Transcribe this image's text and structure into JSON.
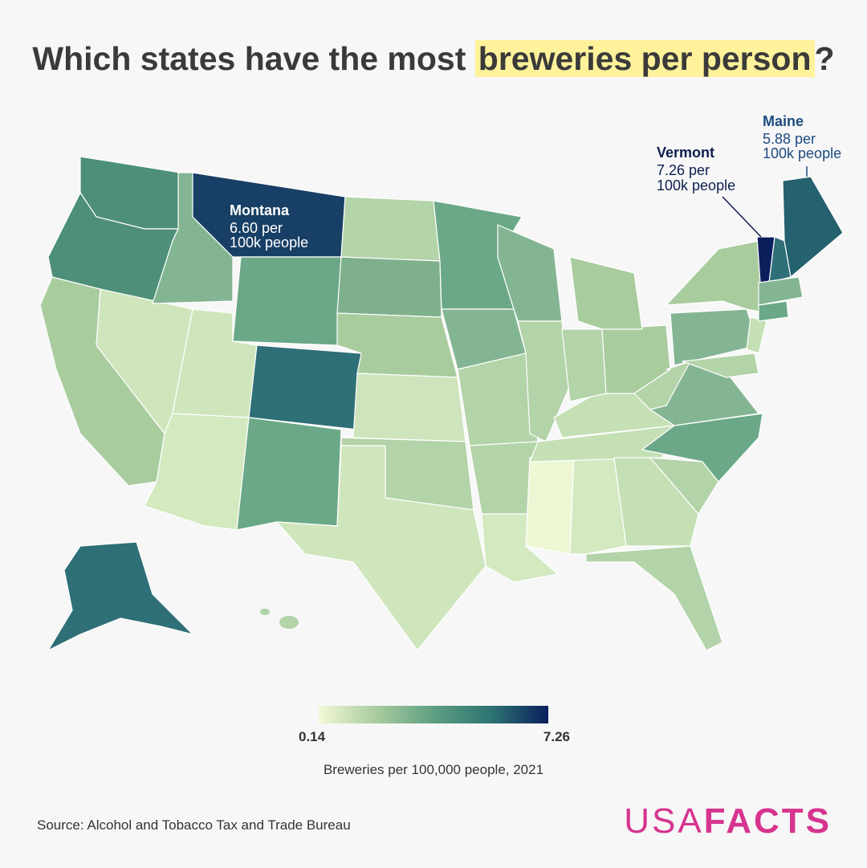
{
  "title": {
    "before": "Which states have the most",
    "highlight": "breweries per person",
    "after": "?"
  },
  "annotations": [
    {
      "state": "Montana",
      "value": 6.6,
      "value_label": "6.60 per",
      "unit": "100k people"
    },
    {
      "state": "Vermont",
      "value": 7.26,
      "value_label": "7.26 per",
      "unit": "100k people"
    },
    {
      "state": "Maine",
      "value": 5.88,
      "value_label": "5.88 per",
      "unit": "100k people"
    }
  ],
  "legend": {
    "min": 0.14,
    "max": 7.26,
    "colors": [
      "#f3f9d6",
      "#a9cc9f",
      "#5e9f82",
      "#2d7473",
      "#0b1f5c"
    ],
    "label": "Breweries per 100,000 people, 2021"
  },
  "source": "Source: Alcohol and Tobacco Tax and Trade Bureau",
  "logo": {
    "light": "USA",
    "bold": "FACTS"
  }
}
